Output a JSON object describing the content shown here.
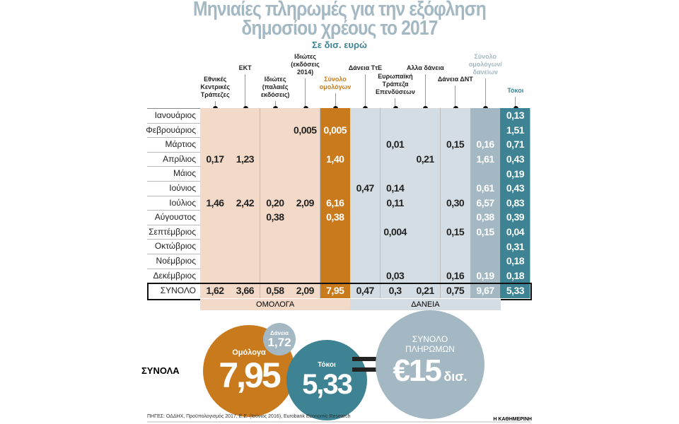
{
  "title_line1": "Μηνιαίες πληρωμές για την εξόφληση",
  "title_line2": "δημοσίου χρέους το 2017",
  "subtitle": "Σε δισ. ευρώ",
  "colors": {
    "bonds_bg": "#f2d9c8",
    "bonds_total": "#c97a1c",
    "loans_bg": "#d3dde3",
    "total": "#a3b8c2",
    "interest": "#3d8393"
  },
  "chart_data": {
    "type": "table",
    "columns": [
      "Εθνικές Κεντρικές Τράπεζες",
      "ΕΚΤ",
      "Ιδιώτες (παλαιές εκδόσεις)",
      "Ιδιώτες (εκδόσεις 2014)",
      "Σύνολο ομολόγων",
      "Δάνεια ΤτΕ",
      "Ευρωπαϊκή Τράπεζα Επενδύσεων",
      "Αλλα δάνεια",
      "Δάνεια ΔΝΤ",
      "Σύνολο ομολόγων/ δανείων",
      "Τόκοι"
    ],
    "rows": [
      {
        "month": "Ιανουάριος",
        "values": [
          "",
          "",
          "",
          "",
          "",
          "",
          "",
          "",
          "",
          "",
          "0,13"
        ]
      },
      {
        "month": "Φεβρουάριος",
        "values": [
          "",
          "",
          "",
          "0,005",
          "0,005",
          "",
          "",
          "",
          "",
          "",
          "1,51"
        ]
      },
      {
        "month": "Μάρτιος",
        "values": [
          "",
          "",
          "",
          "",
          "",
          "",
          "0,01",
          "",
          "0,15",
          "0,16",
          "0,71"
        ]
      },
      {
        "month": "Απρίλιος",
        "values": [
          "0,17",
          "1,23",
          "",
          "",
          "1,40",
          "",
          "",
          "0,21",
          "",
          "1,61",
          "0,43"
        ]
      },
      {
        "month": "Μάιος",
        "values": [
          "",
          "",
          "",
          "",
          "",
          "",
          "",
          "",
          "",
          "",
          "0,19"
        ]
      },
      {
        "month": "Ιούνιος",
        "values": [
          "",
          "",
          "",
          "",
          "",
          "0,47",
          "0,14",
          "",
          "",
          "0,61",
          "0,43"
        ]
      },
      {
        "month": "Ιούλιος",
        "values": [
          "1,46",
          "2,42",
          "0,20",
          "2,09",
          "6,16",
          "",
          "0,11",
          "",
          "0,30",
          "6,57",
          "0,83"
        ]
      },
      {
        "month": "Αύγουστος",
        "values": [
          "",
          "",
          "0,38",
          "",
          "0,38",
          "",
          "",
          "",
          "",
          "0,38",
          "0,39"
        ]
      },
      {
        "month": "Σεπτέμβριος",
        "values": [
          "",
          "",
          "",
          "",
          "",
          "",
          "0,004",
          "",
          "0,15",
          "0,15",
          "0,04"
        ]
      },
      {
        "month": "Οκτώβριος",
        "values": [
          "",
          "",
          "",
          "",
          "",
          "",
          "",
          "",
          "",
          "",
          "0,31"
        ]
      },
      {
        "month": "Νοέμβριος",
        "values": [
          "",
          "",
          "",
          "",
          "",
          "",
          "",
          "",
          "",
          "",
          "0,18"
        ]
      },
      {
        "month": "Δεκέμβριος",
        "values": [
          "",
          "",
          "",
          "",
          "",
          "",
          "0,03",
          "",
          "0,16",
          "0,19",
          "0,18"
        ]
      }
    ],
    "total_row": {
      "label": "ΣΥΝΟΛΟ",
      "values": [
        "1,62",
        "3,66",
        "0,58",
        "2,09",
        "7,95",
        "0,47",
        "0,3",
        "0,21",
        "0,75",
        "9,67",
        "5,33"
      ]
    },
    "groups": [
      "ΟΜΟΛΟΓΑ",
      "ΔΑΝΕΙΑ"
    ]
  },
  "summary": {
    "label": "ΣΥΝΟΛΑ",
    "bonds": {
      "label": "Ομόλογα",
      "value": "7,95"
    },
    "loans": {
      "label": "Δάνεια",
      "value": "1,72"
    },
    "interest": {
      "label": "Τόκοι",
      "value": "5,33"
    },
    "equals": "=",
    "total": {
      "label_line1": "ΣΥΝΟΛΟ",
      "label_line2": "ΠΛΗΡΩΜΩΝ",
      "value": "€15",
      "unit": "δισ."
    }
  },
  "source": "ΠΗΓΕΣ: ΟΔΔΗΧ, Προϋπολογισμός 2017, Ε.Ε. (Ιούνιος 2016), Eurobank Economic Research",
  "publisher": "Η ΚΑΘΗΜΕΡΙΝΗ"
}
